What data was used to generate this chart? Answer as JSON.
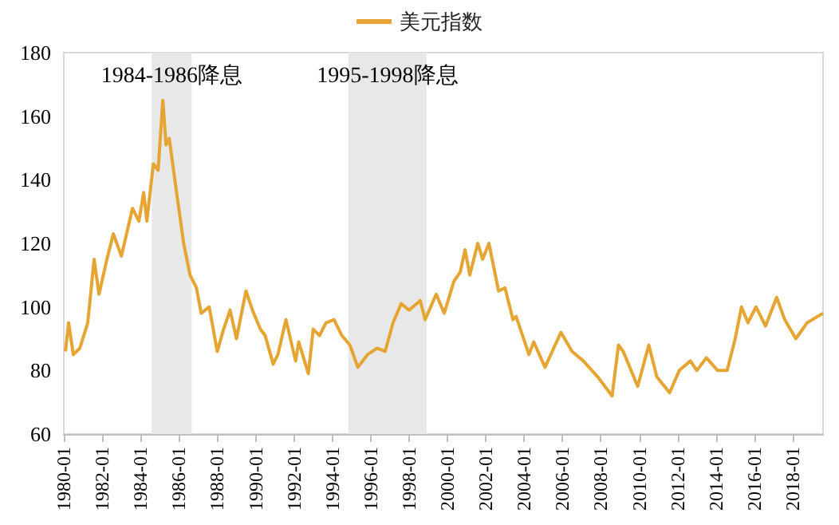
{
  "chart_data": {
    "type": "line",
    "x": [
      "1980-02",
      "1980-04",
      "1980-07",
      "1980-11",
      "1981-04",
      "1981-08",
      "1981-11",
      "1982-04",
      "1982-08",
      "1983-01",
      "1983-08",
      "1983-12",
      "1984-03",
      "1984-05",
      "1984-09",
      "1984-12",
      "1985-03",
      "1985-05",
      "1985-07",
      "1985-11",
      "1986-04",
      "1986-08",
      "1986-12",
      "1987-03",
      "1987-08",
      "1988-01",
      "1988-05",
      "1988-09",
      "1989-01",
      "1989-07",
      "1989-11",
      "1990-04",
      "1990-07",
      "1990-12",
      "1991-03",
      "1991-08",
      "1992-02",
      "1992-04",
      "1992-10",
      "1993-01",
      "1993-05",
      "1993-09",
      "1994-02",
      "1994-07",
      "1994-12",
      "1995-05",
      "1995-11",
      "1996-05",
      "1996-10",
      "1997-03",
      "1997-08",
      "1998-01",
      "1998-08",
      "1998-11",
      "1999-06",
      "1999-11",
      "2000-05",
      "2000-09",
      "2000-12",
      "2001-03",
      "2001-08",
      "2001-11",
      "2002-03",
      "2002-09",
      "2003-01",
      "2003-06",
      "2003-08",
      "2004-04",
      "2004-07",
      "2005-02",
      "2005-12",
      "2006-07",
      "2007-02",
      "2007-11",
      "2008-08",
      "2008-12",
      "2009-03",
      "2009-12",
      "2010-07",
      "2010-12",
      "2011-08",
      "2012-02",
      "2012-09",
      "2013-01",
      "2013-07",
      "2014-02",
      "2014-08",
      "2015-01",
      "2015-05",
      "2015-09",
      "2016-02",
      "2016-08",
      "2017-03",
      "2017-08",
      "2018-03",
      "2018-10",
      "2019-08"
    ],
    "series": [
      {
        "name": "美元指数",
        "color": "#e6a532",
        "values": [
          86,
          95,
          85,
          87,
          95,
          115,
          104,
          115,
          123,
          116,
          131,
          127,
          136,
          127,
          145,
          143,
          165,
          151,
          153,
          138,
          120,
          110,
          106,
          98,
          100,
          86,
          93,
          99,
          90,
          105,
          99,
          93,
          91,
          82,
          85,
          96,
          83,
          89,
          79,
          93,
          91,
          95,
          96,
          91,
          88,
          81,
          85,
          87,
          86,
          95,
          101,
          99,
          102,
          96,
          104,
          98,
          108,
          111,
          118,
          110,
          120,
          115,
          120,
          105,
          106,
          96,
          97,
          85,
          89,
          81,
          92,
          86,
          83,
          78,
          72,
          88,
          86,
          75,
          88,
          78,
          73,
          80,
          83,
          80,
          84,
          80,
          80,
          90,
          100,
          95,
          100,
          94,
          103,
          96,
          90,
          95,
          98
        ]
      }
    ],
    "xlim": [
      "1980-01",
      "2019-08"
    ],
    "xticks": [
      "1980-01",
      "1982-01",
      "1984-01",
      "1986-01",
      "1988-01",
      "1990-01",
      "1992-01",
      "1994-01",
      "1996-01",
      "1998-01",
      "2000-01",
      "2002-01",
      "2004-01",
      "2006-01",
      "2008-01",
      "2010-01",
      "2012-01",
      "2014-01",
      "2016-01",
      "2018-01"
    ],
    "ylim": [
      60,
      180
    ],
    "yticks": [
      60,
      80,
      100,
      120,
      140,
      160,
      180
    ],
    "bands": [
      {
        "axis": "x",
        "from": "1984-08",
        "to": "1986-09",
        "label": "1984-1986降息",
        "color": "#e8e8e8"
      },
      {
        "axis": "x",
        "from": "1994-11",
        "to": "1998-12",
        "label": "1995-1998降息",
        "color": "#e8e8e8"
      }
    ],
    "legend": "top",
    "grid": false,
    "marker": "none",
    "line_style": "solid"
  }
}
